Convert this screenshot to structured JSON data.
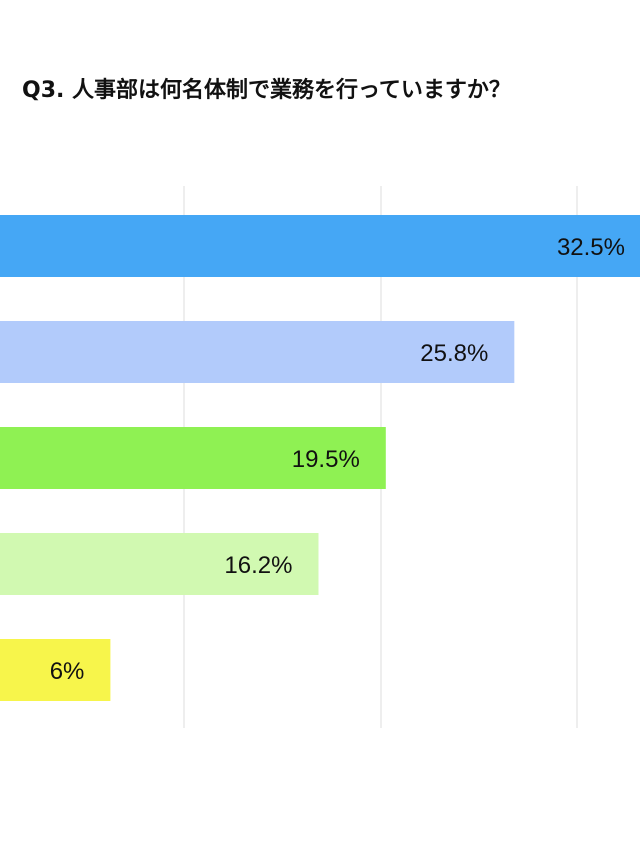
{
  "chart_data": {
    "type": "bar",
    "orientation": "horizontal",
    "title": "Q3. 人事部は何名体制で業務を行っていますか？",
    "xlabel": "",
    "ylabel": "",
    "categories": [
      "",
      "",
      "",
      "",
      ""
    ],
    "values": [
      32.5,
      25.8,
      19.5,
      16.2,
      6
    ],
    "labels": [
      "32.5%",
      "25.8%",
      "19.5%",
      "16.2%",
      "6%"
    ],
    "colors": [
      "#45a7f5",
      "#b2cbfb",
      "#8ff153",
      "#d1f9b1",
      "#f7f54b"
    ],
    "grid": true
  }
}
